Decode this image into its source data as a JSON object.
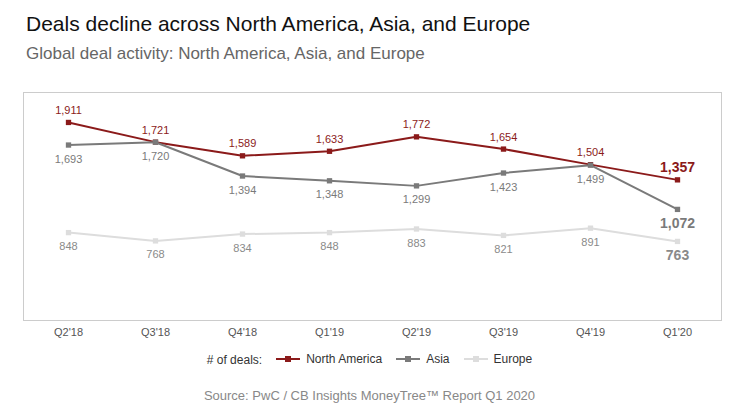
{
  "chart_data": {
    "type": "line",
    "title": "Deals decline across North America, Asia, and Europe",
    "subtitle": "Global deal activity: North America, Asia, and Europe",
    "source": "Source: PwC / CB Insights MoneyTree™ Report Q1 2020",
    "legend_title": "# of deals:",
    "categories": [
      "Q2'18",
      "Q3'18",
      "Q4'18",
      "Q1'19",
      "Q2'19",
      "Q3'19",
      "Q4'19",
      "Q1'20"
    ],
    "series": [
      {
        "name": "North America",
        "color": "#8b1a1a",
        "values": [
          1911,
          1721,
          1589,
          1633,
          1772,
          1654,
          1504,
          1357
        ],
        "value_labels": [
          "1,911",
          "1,721",
          "1,589",
          "1,633",
          "1,772",
          "1,654",
          "1,504",
          "1,357"
        ]
      },
      {
        "name": "Asia",
        "color": "#7a7a7a",
        "values": [
          1693,
          1720,
          1394,
          1348,
          1299,
          1423,
          1499,
          1072
        ],
        "value_labels": [
          "1,693",
          "1,720",
          "1,394",
          "1,348",
          "1,299",
          "1,423",
          "1,499",
          "1,072"
        ]
      },
      {
        "name": "Europe",
        "color": "#dddddd",
        "values": [
          848,
          768,
          834,
          848,
          883,
          821,
          891,
          763
        ],
        "value_labels": [
          "848",
          "768",
          "834",
          "848",
          "883",
          "821",
          "891",
          "763"
        ]
      }
    ],
    "ylim": [
      0,
      2200
    ],
    "yticks": [],
    "grid": false,
    "legend": "bottom",
    "data_labels": true,
    "tick_labels": "x",
    "marker": "square"
  }
}
